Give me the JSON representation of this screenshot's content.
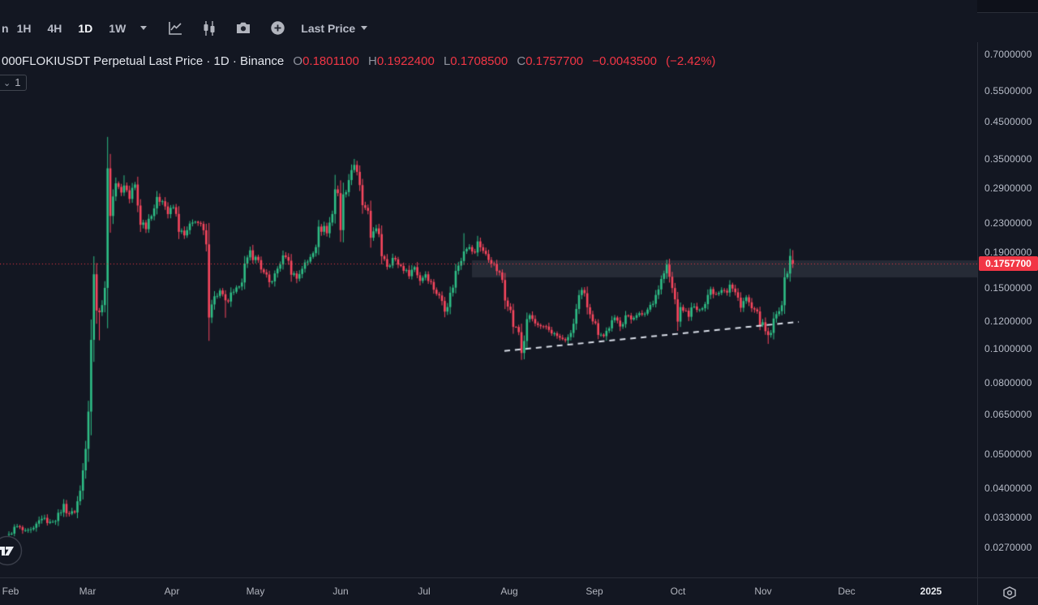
{
  "window": {
    "title": "1000FLOKIUSDT Perpetual chart"
  },
  "colors": {
    "background": "#131722",
    "up": "#2ebd85",
    "down": "#f6465d",
    "current_price_line": "#f23645",
    "price_label_bg": "#f23645",
    "trendline": "#d9dee8",
    "zone_fill": "rgba(168,178,194,0.13)",
    "axis_text": "#b8bdc9",
    "border": "#2a2e39"
  },
  "toolbar": {
    "cut_interval_label": "n",
    "intervals": [
      "1H",
      "4H",
      "1D",
      "1W"
    ],
    "active_interval": "1D",
    "price_source_label": "Last Price"
  },
  "legend": {
    "symbol_line": "000FLOKIUSDT Perpetual Last Price · 1D · Binance",
    "open_label": "O",
    "open_value": "0.1801100",
    "high_label": "H",
    "high_value": "0.1922400",
    "low_label": "L",
    "low_value": "0.1708500",
    "close_label": "C",
    "close_value": "0.1757700",
    "change_value": "−0.0043500",
    "change_pct": "(−2.42%)"
  },
  "objects_badge": {
    "chevron": "⌄",
    "count": "1"
  },
  "price_axis": {
    "ticks": [
      "0.7000000",
      "0.5500000",
      "0.4500000",
      "0.3500000",
      "0.2900000",
      "0.2300000",
      "0.1900000",
      "0.1500000",
      "0.1200000",
      "0.1000000",
      "0.0800000",
      "0.0650000",
      "0.0500000",
      "0.0400000",
      "0.0330000",
      "0.0270000"
    ],
    "last_price_label": "0.1757700"
  },
  "time_axis": {
    "labels": [
      "Feb",
      "Mar",
      "Apr",
      "May",
      "Jun",
      "Jul",
      "Aug",
      "Sep",
      "Oct",
      "Nov",
      "Dec",
      "2025"
    ]
  },
  "chart_data": {
    "type": "candlestick",
    "title": "1000FLOKIUSDT Perpetual · 1D · Binance",
    "price_source": "Last Price",
    "scale": "logarithmic",
    "ylim": [
      0.025,
      0.75
    ],
    "x_range": [
      "Feb 2024",
      "Nov 2024"
    ],
    "current_price": 0.17577,
    "last_candle": {
      "open": 0.18011,
      "high": 0.19224,
      "low": 0.17085,
      "close": 0.17577,
      "change": -0.00435,
      "change_pct": -2.42
    },
    "close_path_anchors": [
      [
        0,
        0.0295
      ],
      [
        3,
        0.031
      ],
      [
        6,
        0.0298
      ],
      [
        9,
        0.0305
      ],
      [
        12,
        0.033
      ],
      [
        15,
        0.0318
      ],
      [
        18,
        0.0332
      ],
      [
        20,
        0.0355
      ],
      [
        22,
        0.0338
      ],
      [
        24,
        0.0342
      ],
      [
        26,
        0.039
      ],
      [
        27,
        0.045
      ],
      [
        28,
        0.062
      ],
      [
        29,
        0.095
      ],
      [
        30,
        0.125
      ],
      [
        31,
        0.155
      ],
      [
        33,
        0.128
      ],
      [
        34,
        0.132
      ],
      [
        35,
        0.175
      ],
      [
        36,
        0.255
      ],
      [
        38,
        0.285
      ],
      [
        40,
        0.295
      ],
      [
        41,
        0.28
      ],
      [
        42,
        0.3
      ],
      [
        44,
        0.27
      ],
      [
        45,
        0.285
      ],
      [
        46,
        0.295
      ],
      [
        47,
        0.26
      ],
      [
        48,
        0.235
      ],
      [
        50,
        0.225
      ],
      [
        52,
        0.25
      ],
      [
        54,
        0.265
      ],
      [
        56,
        0.27
      ],
      [
        58,
        0.245
      ],
      [
        60,
        0.255
      ],
      [
        62,
        0.225
      ],
      [
        64,
        0.21
      ],
      [
        66,
        0.225
      ],
      [
        68,
        0.235
      ],
      [
        70,
        0.225
      ],
      [
        71,
        0.215
      ],
      [
        72,
        0.185
      ],
      [
        73,
        0.148
      ],
      [
        75,
        0.14
      ],
      [
        77,
        0.146
      ],
      [
        79,
        0.133
      ],
      [
        81,
        0.142
      ],
      [
        83,
        0.148
      ],
      [
        85,
        0.162
      ],
      [
        87,
        0.18
      ],
      [
        88,
        0.19
      ],
      [
        89,
        0.185
      ],
      [
        91,
        0.18
      ],
      [
        93,
        0.164
      ],
      [
        95,
        0.154
      ],
      [
        97,
        0.162
      ],
      [
        99,
        0.178
      ],
      [
        101,
        0.185
      ],
      [
        103,
        0.169
      ],
      [
        105,
        0.16
      ],
      [
        107,
        0.172
      ],
      [
        109,
        0.178
      ],
      [
        111,
        0.195
      ],
      [
        113,
        0.215
      ],
      [
        115,
        0.225
      ],
      [
        116,
        0.215
      ],
      [
        117,
        0.23
      ],
      [
        118,
        0.25
      ],
      [
        119,
        0.295
      ],
      [
        120,
        0.275
      ],
      [
        121,
        0.24
      ],
      [
        122,
        0.26
      ],
      [
        123,
        0.29
      ],
      [
        124,
        0.31
      ],
      [
        125,
        0.33
      ],
      [
        126,
        0.34
      ],
      [
        127,
        0.31
      ],
      [
        128,
        0.28
      ],
      [
        129,
        0.26
      ],
      [
        131,
        0.24
      ],
      [
        132,
        0.21
      ],
      [
        133,
        0.225
      ],
      [
        134,
        0.22
      ],
      [
        135,
        0.205
      ],
      [
        136,
        0.19
      ],
      [
        138,
        0.175
      ],
      [
        140,
        0.182
      ],
      [
        142,
        0.176
      ],
      [
        144,
        0.17
      ],
      [
        146,
        0.165
      ],
      [
        148,
        0.172
      ],
      [
        150,
        0.158
      ],
      [
        152,
        0.165
      ],
      [
        154,
        0.155
      ],
      [
        156,
        0.145
      ],
      [
        158,
        0.138
      ],
      [
        159,
        0.132
      ],
      [
        161,
        0.142
      ],
      [
        163,
        0.165
      ],
      [
        165,
        0.185
      ],
      [
        166,
        0.202
      ],
      [
        168,
        0.195
      ],
      [
        170,
        0.188
      ],
      [
        171,
        0.205
      ],
      [
        172,
        0.198
      ],
      [
        174,
        0.185
      ],
      [
        176,
        0.178
      ],
      [
        178,
        0.169
      ],
      [
        180,
        0.158
      ],
      [
        181,
        0.145
      ],
      [
        182,
        0.135
      ],
      [
        183,
        0.128
      ],
      [
        184,
        0.118
      ],
      [
        186,
        0.112
      ],
      [
        187,
        0.099
      ],
      [
        188,
        0.108
      ],
      [
        190,
        0.125
      ],
      [
        192,
        0.118
      ],
      [
        194,
        0.114
      ],
      [
        196,
        0.116
      ],
      [
        198,
        0.112
      ],
      [
        200,
        0.109
      ],
      [
        202,
        0.106
      ],
      [
        204,
        0.107
      ],
      [
        206,
        0.118
      ],
      [
        208,
        0.138
      ],
      [
        209,
        0.146
      ],
      [
        210,
        0.142
      ],
      [
        211,
        0.135
      ],
      [
        213,
        0.122
      ],
      [
        215,
        0.113
      ],
      [
        217,
        0.109
      ],
      [
        219,
        0.116
      ],
      [
        221,
        0.122
      ],
      [
        223,
        0.118
      ],
      [
        225,
        0.125
      ],
      [
        227,
        0.122
      ],
      [
        229,
        0.128
      ],
      [
        231,
        0.124
      ],
      [
        233,
        0.13
      ],
      [
        235,
        0.138
      ],
      [
        237,
        0.15
      ],
      [
        239,
        0.165
      ],
      [
        240,
        0.172
      ],
      [
        241,
        0.16
      ],
      [
        242,
        0.148
      ],
      [
        243,
        0.138
      ],
      [
        244,
        0.125
      ],
      [
        246,
        0.13
      ],
      [
        248,
        0.126
      ],
      [
        250,
        0.132
      ],
      [
        252,
        0.128
      ],
      [
        254,
        0.14
      ],
      [
        256,
        0.148
      ],
      [
        258,
        0.144
      ],
      [
        260,
        0.15
      ],
      [
        262,
        0.146
      ],
      [
        263,
        0.153
      ],
      [
        265,
        0.144
      ],
      [
        267,
        0.135
      ],
      [
        269,
        0.14
      ],
      [
        271,
        0.13
      ],
      [
        273,
        0.125
      ],
      [
        275,
        0.118
      ],
      [
        277,
        0.106
      ],
      [
        278,
        0.112
      ],
      [
        280,
        0.125
      ],
      [
        282,
        0.14
      ],
      [
        283,
        0.15
      ],
      [
        284,
        0.17
      ],
      [
        285,
        0.19
      ],
      [
        286,
        0.17577
      ]
    ],
    "wick_spikes": {
      "33": {
        "lo": 0.106
      },
      "42": {
        "hi": 0.315
      },
      "73": {
        "lo": 0.106
      },
      "79": {
        "lo": 0.123
      },
      "119": {
        "hi": 0.316
      },
      "126": {
        "hi": 0.351
      },
      "159": {
        "lo": 0.125
      },
      "166": {
        "hi": 0.215
      },
      "187": {
        "lo": 0.094
      },
      "240": {
        "hi": 0.177
      },
      "277": {
        "lo": 0.1035
      },
      "285": {
        "hi": 0.194
      }
    },
    "resistance_zone": {
      "price_top": 0.1797,
      "price_bottom": 0.1606
    },
    "trendline": {
      "style": "dashed",
      "color": "white",
      "from_price": 0.0988,
      "to_price": 0.1197
    },
    "legend_position": "top-left",
    "grid": "off"
  }
}
